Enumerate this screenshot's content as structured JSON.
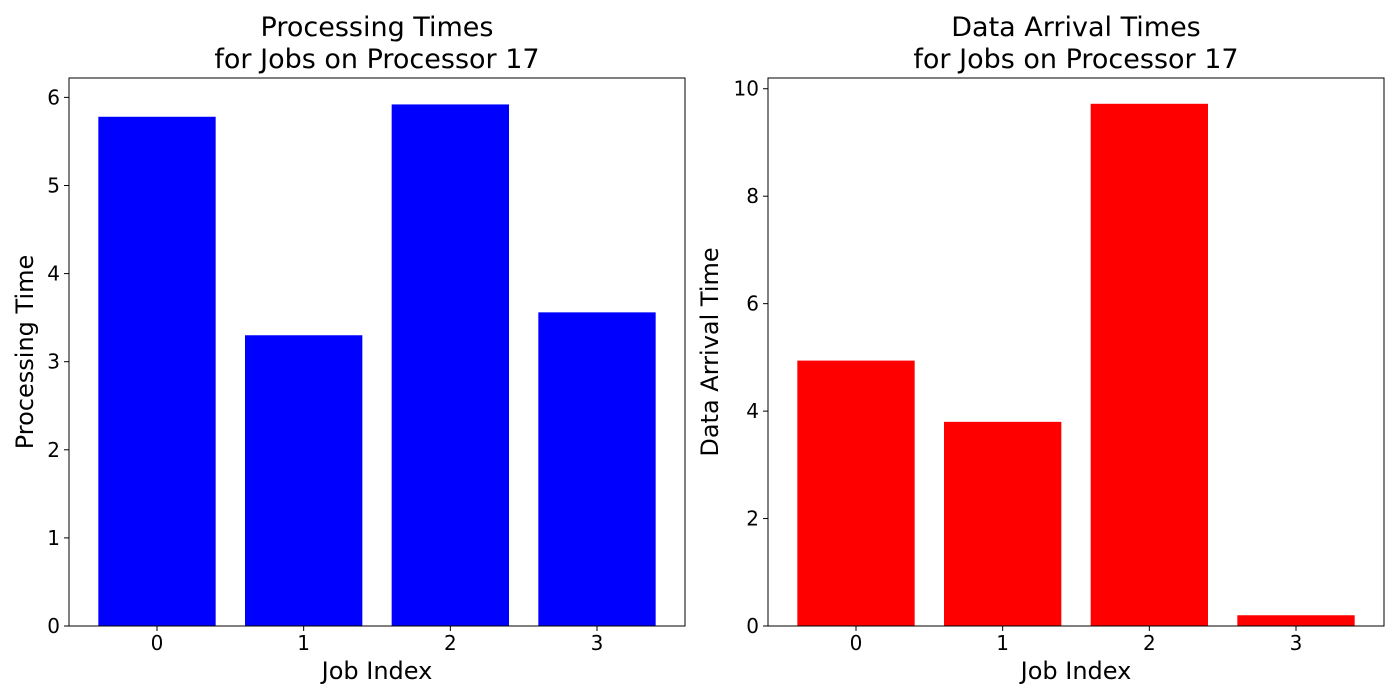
{
  "chart_data": [
    {
      "type": "bar",
      "title_lines": [
        "Processing Times",
        "for Jobs on Processor 17"
      ],
      "xlabel": "Job Index",
      "ylabel": "Processing Time",
      "categories": [
        "0",
        "1",
        "2",
        "3"
      ],
      "values": [
        5.78,
        3.3,
        5.92,
        3.56
      ],
      "ylim": [
        0,
        6.22
      ],
      "yticks": [
        0,
        1,
        2,
        3,
        4,
        5,
        6
      ],
      "color": "#0000ff",
      "grid": false
    },
    {
      "type": "bar",
      "title_lines": [
        "Data Arrival Times",
        "for Jobs on Processor 17"
      ],
      "xlabel": "Job Index",
      "ylabel": "Data Arrival Time",
      "categories": [
        "0",
        "1",
        "2",
        "3"
      ],
      "values": [
        4.94,
        3.8,
        9.72,
        0.2
      ],
      "ylim": [
        0,
        10.2
      ],
      "yticks": [
        0,
        2,
        4,
        6,
        8,
        10
      ],
      "color": "#ff0000",
      "grid": false
    }
  ]
}
